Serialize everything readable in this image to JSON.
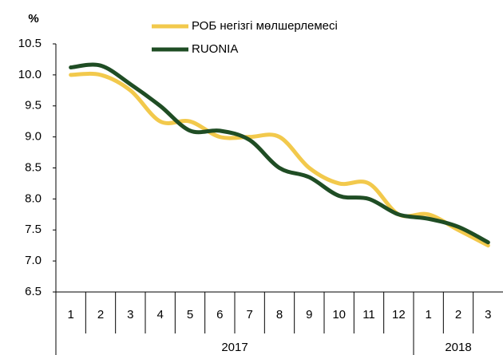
{
  "chart_data": {
    "type": "line",
    "y_unit": "%",
    "categories": [
      "1",
      "2",
      "3",
      "4",
      "5",
      "6",
      "7",
      "8",
      "9",
      "10",
      "11",
      "12",
      "1",
      "2",
      "3"
    ],
    "groups": [
      {
        "label": "2017",
        "count": 12
      },
      {
        "label": "2018",
        "count": 3
      }
    ],
    "series": [
      {
        "name": "РОБ негізгі мөлшерлемесі",
        "color": "#f2c94c",
        "values": [
          10.0,
          10.0,
          9.75,
          9.25,
          9.25,
          9.0,
          9.0,
          9.0,
          8.5,
          8.25,
          8.25,
          7.75,
          7.75,
          7.5,
          7.25
        ]
      },
      {
        "name": "RUONIA",
        "color": "#1f4d24",
        "values": [
          10.12,
          10.15,
          9.85,
          9.5,
          9.1,
          9.1,
          8.95,
          8.5,
          8.35,
          8.05,
          8.0,
          7.75,
          7.68,
          7.55,
          7.3
        ]
      }
    ],
    "ylim": [
      6.5,
      10.5
    ],
    "yticks": [
      6.5,
      {
        "value": 7,
        "label": "7.0"
      },
      7.5,
      {
        "value": 8,
        "label": "8.0"
      },
      8.5,
      {
        "value": 9,
        "label": "9.0"
      },
      9.5,
      {
        "value": 10,
        "label": "10.0"
      },
      10.5
    ],
    "legend": "top"
  }
}
